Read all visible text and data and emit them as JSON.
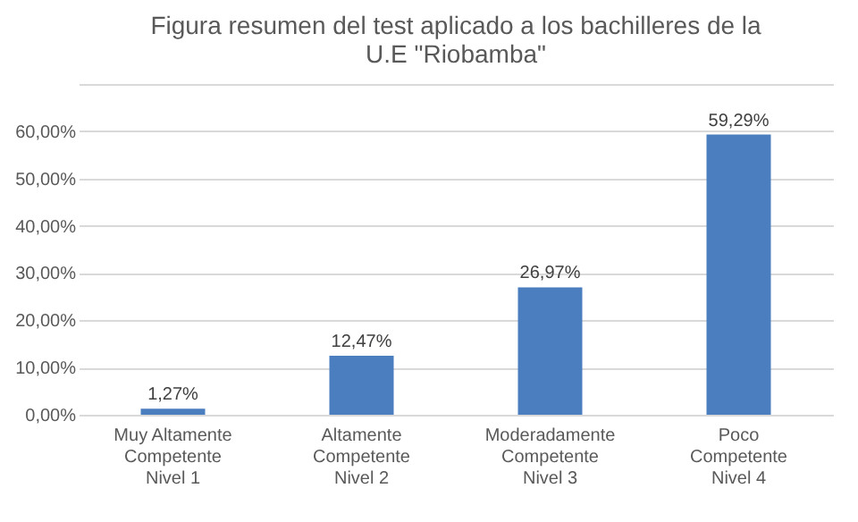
{
  "chart_data": {
    "type": "bar",
    "title": "Figura resumen del test aplicado a los bachilleres de la\nU.E \"Riobamba\"",
    "categories": [
      "Muy Altamente\nCompetente\n\nNivel 1",
      "Altamente\nCompetente\n\nNivel 2",
      "Moderadamente\nCompetente\n\nNivel 3",
      "Poco\nCompetente\n\nNivel 4"
    ],
    "values": [
      1.27,
      12.47,
      26.97,
      59.29
    ],
    "value_labels": [
      "1,27%",
      "12,47%",
      "26,97%",
      "59,29%"
    ],
    "color": "#4a7ebf",
    "ylim": [
      0,
      70
    ],
    "yticks": [
      {
        "value": 0,
        "label": "0,00%"
      },
      {
        "value": 10,
        "label": "10,00%"
      },
      {
        "value": 20,
        "label": "20,00%"
      },
      {
        "value": 30,
        "label": "30,00%"
      },
      {
        "value": 40,
        "label": "40,00%"
      },
      {
        "value": 50,
        "label": "50,00%"
      },
      {
        "value": 60,
        "label": "60,00%"
      },
      {
        "value": 70,
        "label": null
      }
    ],
    "grid": "y"
  }
}
